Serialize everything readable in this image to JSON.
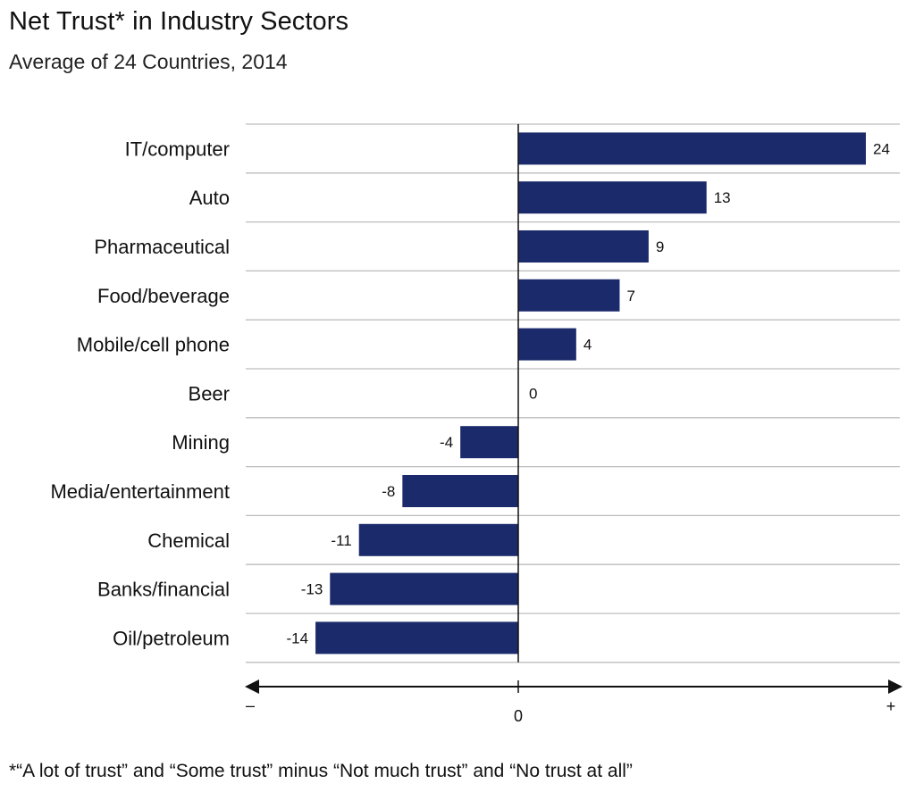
{
  "chart_data": {
    "type": "bar",
    "orientation": "horizontal",
    "title": "Net Trust* in Industry Sectors",
    "subtitle": "Average of 24 Countries, 2014",
    "categories": [
      "IT/computer",
      "Auto",
      "Pharmaceutical",
      "Food/beverage",
      "Mobile/cell phone",
      "Beer",
      "Mining",
      "Media/entertainment",
      "Chemical",
      "Banks/financial",
      "Oil/petroleum"
    ],
    "values": [
      24,
      13,
      9,
      7,
      4,
      0,
      -4,
      -8,
      -11,
      -13,
      -14
    ],
    "xlim": [
      -19,
      25
    ],
    "axis": {
      "min_label": "–",
      "zero_label": "0",
      "max_label": "+"
    },
    "footnote": "*“A lot of trust” and “Some trust” minus “Not much trust” and “No trust at all”",
    "colors": {
      "bar": "#1b2a6b",
      "grid": "#bdbdbd",
      "axis": "#111111"
    }
  }
}
